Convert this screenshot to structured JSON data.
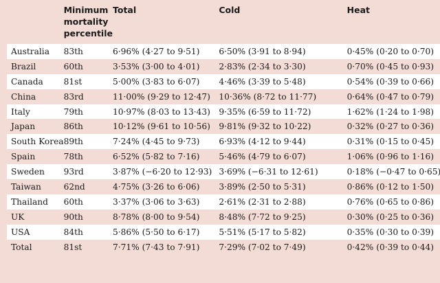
{
  "headers": {
    "country": "",
    "mmp": [
      "Minimum",
      "mortality",
      "percentile"
    ],
    "total": "Total",
    "cold": "Cold",
    "heat": "Heat"
  },
  "rows": [
    {
      "country": "Australia",
      "mmp": "83th",
      "total": "6·96% (4·27 to 9·51)",
      "cold": "6·50% (3·91 to 8·94)",
      "heat": "0·45% (0·20 to 0·70)"
    },
    {
      "country": "Brazil",
      "mmp": "60th",
      "total": "3·53% (3·00 to 4·01)",
      "cold": "2·83% (2·34 to 3·30)",
      "heat": "0·70% (0·45 to 0·93)"
    },
    {
      "country": "Canada",
      "mmp": "81st",
      "total": "5·00% (3·83 to 6·07)",
      "cold": "4·46% (3·39 to 5·48)",
      "heat": "0·54% (0·39 to 0·66)"
    },
    {
      "country": "China",
      "mmp": "83rd",
      "total": "11·00% (9·29 to 12·47)",
      "cold": "10·36% (8·72 to 11·77)",
      "heat": "0·64% (0·47 to 0·79)"
    },
    {
      "country": "Italy",
      "mmp": "79th",
      "total": "10·97% (8·03 to 13·43)",
      "cold": "9·35% (6·59 to 11·72)",
      "heat": "1·62% (1·24 to 1·98)"
    },
    {
      "country": "Japan",
      "mmp": "86th",
      "total": "10·12% (9·61 to 10·56)",
      "cold": "9·81% (9·32 to 10·22)",
      "heat": "0·32% (0·27 to 0·36)"
    },
    {
      "country": "South Korea",
      "mmp": "89th",
      "total": "7·24% (4·45 to 9·73)",
      "cold": "6·93% (4·12 to 9·44)",
      "heat": "0·31% (0·15 to 0·45)"
    },
    {
      "country": "Spain",
      "mmp": "78th",
      "total": "6·52% (5·82 to 7·16)",
      "cold": "5·46% (4·79 to 6·07)",
      "heat": "1·06% (0·96 to 1·16)"
    },
    {
      "country": "Sweden",
      "mmp": "93rd",
      "total": "3·87% (−6·20 to 12·93)",
      "cold": "3·69% (−6·31 to 12·61)",
      "heat": "0·18% (−0·47 to 0·65)"
    },
    {
      "country": "Taiwan",
      "mmp": "62nd",
      "total": "4·75% (3·26 to 6·06)",
      "cold": "3·89% (2·50 to 5·31)",
      "heat": "0·86% (0·12 to 1·50)"
    },
    {
      "country": "Thailand",
      "mmp": "60th",
      "total": "3·37% (3·06 to 3·63)",
      "cold": "2·61% (2·31 to 2·88)",
      "heat": "0·76% (0·65 to 0·86)"
    },
    {
      "country": "UK",
      "mmp": "90th",
      "total": "8·78% (8·00 to 9·54)",
      "cold": "8·48% (7·72 to 9·25)",
      "heat": "0·30% (0·25 to 0·36)"
    },
    {
      "country": "USA",
      "mmp": "84th",
      "total": "5·86% (5·50 to 6·17)",
      "cold": "5·51% (5·17 to 5·82)",
      "heat": "0·35% (0·30 to 0·39)"
    },
    {
      "country": "Total",
      "mmp": "81st",
      "total": "7·71% (7·43 to 7·91)",
      "cold": "7·29% (7·02 to 7·49)",
      "heat": "0·42% (0·39 to 0·44)"
    }
  ]
}
